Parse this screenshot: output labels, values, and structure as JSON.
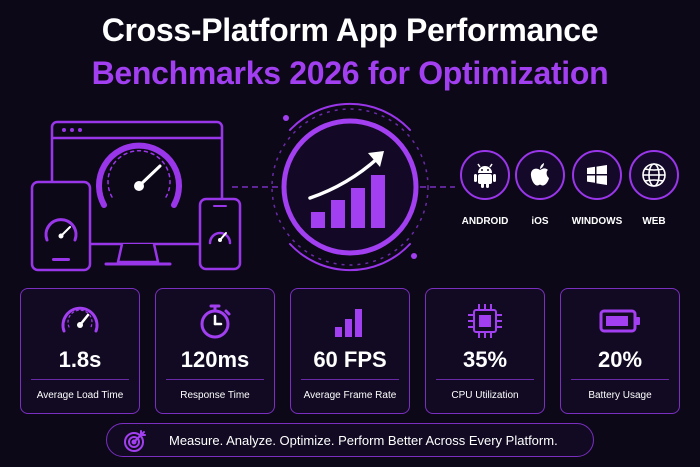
{
  "header": {
    "title_line1": "Cross-Platform App Performance",
    "title_line2": "Benchmarks 2026 for Optimization"
  },
  "colors": {
    "accent": "#a23ff0",
    "background": "#0c0818",
    "border": "#7a2fc0"
  },
  "platforms": [
    {
      "label": "ANDROID",
      "icon": "android-icon"
    },
    {
      "label": "iOS",
      "icon": "apple-icon"
    },
    {
      "label": "WINDOWS",
      "icon": "windows-icon"
    },
    {
      "label": "WEB",
      "icon": "globe-icon"
    }
  ],
  "metrics": [
    {
      "value": "1.8s",
      "label": "Average Load Time",
      "icon": "speedometer-icon"
    },
    {
      "value": "120ms",
      "label": "Response Time",
      "icon": "stopwatch-icon"
    },
    {
      "value": "60 FPS",
      "label": "Average Frame Rate",
      "icon": "bar-chart-icon"
    },
    {
      "value": "35%",
      "label": "CPU Utilization",
      "icon": "cpu-chip-icon"
    },
    {
      "value": "20%",
      "label": "Battery Usage",
      "icon": "battery-icon"
    }
  ],
  "banner": {
    "text": "Measure. Analyze. Optimize. Perform Better Across Every Platform.",
    "icon": "target-icon"
  }
}
